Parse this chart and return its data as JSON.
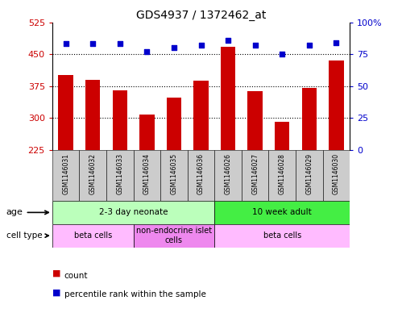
{
  "title": "GDS4937 / 1372462_at",
  "samples": [
    "GSM1146031",
    "GSM1146032",
    "GSM1146033",
    "GSM1146034",
    "GSM1146035",
    "GSM1146036",
    "GSM1146026",
    "GSM1146027",
    "GSM1146028",
    "GSM1146029",
    "GSM1146030"
  ],
  "counts": [
    400,
    390,
    365,
    308,
    348,
    388,
    468,
    362,
    290,
    370,
    435
  ],
  "percentiles": [
    83,
    83,
    83,
    77,
    80,
    82,
    86,
    82,
    75,
    82,
    84
  ],
  "ylim_left": [
    225,
    525
  ],
  "ylim_right": [
    0,
    100
  ],
  "yticks_left": [
    225,
    300,
    375,
    450,
    525
  ],
  "yticks_right": [
    0,
    25,
    50,
    75,
    100
  ],
  "bar_color": "#cc0000",
  "dot_color": "#0000cc",
  "age_groups": [
    {
      "label": "2-3 day neonate",
      "start": 0,
      "end": 6,
      "color": "#bbffbb"
    },
    {
      "label": "10 week adult",
      "start": 6,
      "end": 11,
      "color": "#44ee44"
    }
  ],
  "cell_type_groups": [
    {
      "label": "beta cells",
      "start": 0,
      "end": 3,
      "color": "#ffbbff"
    },
    {
      "label": "non-endocrine islet\ncells",
      "start": 3,
      "end": 6,
      "color": "#ee88ee"
    },
    {
      "label": "beta cells",
      "start": 6,
      "end": 11,
      "color": "#ffbbff"
    }
  ],
  "legend_items": [
    {
      "color": "#cc0000",
      "label": "count"
    },
    {
      "color": "#0000cc",
      "label": "percentile rank within the sample"
    }
  ],
  "title_fontsize": 10,
  "tick_fontsize": 8,
  "label_fontsize": 8
}
